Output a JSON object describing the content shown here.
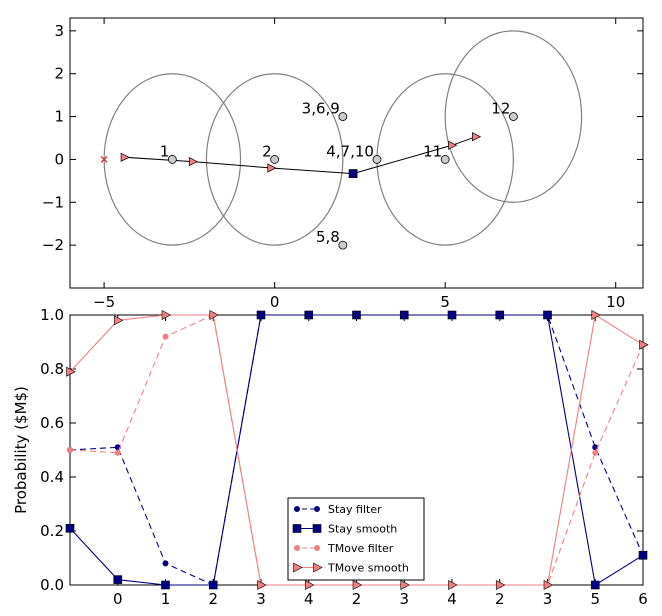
{
  "chart_data": [
    {
      "type": "scatter",
      "xlim": [
        -6,
        10.8
      ],
      "ylim": [
        -3,
        3.3
      ],
      "x_ticks": [
        -5,
        0,
        5,
        10
      ],
      "y_ticks": [
        3,
        2,
        1,
        0,
        -1,
        -2
      ],
      "x_tick_labels": [
        "−5",
        "0",
        "5",
        "10"
      ],
      "y_tick_labels": [
        "3",
        "2",
        "1",
        "0",
        "−1",
        "−2"
      ],
      "observations": [
        {
          "x": -3,
          "y": 0
        },
        {
          "x": 0,
          "y": 0
        },
        {
          "x": 2,
          "y": 1
        },
        {
          "x": 2,
          "y": -2
        },
        {
          "x": 3,
          "y": 0
        },
        {
          "x": 5,
          "y": 0
        },
        {
          "x": 7,
          "y": 1
        }
      ],
      "annotations": [
        {
          "text": "1",
          "x": -3,
          "y": 0
        },
        {
          "text": "2",
          "x": 0,
          "y": 0
        },
        {
          "text": "3,6,9",
          "x": 2,
          "y": 1
        },
        {
          "text": "4,7,10",
          "x": 3,
          "y": 0
        },
        {
          "text": "5,8",
          "x": 2,
          "y": -2
        },
        {
          "text": "11",
          "x": 5,
          "y": 0
        },
        {
          "text": "12",
          "x": 7,
          "y": 1
        }
      ],
      "ellipses": [
        {
          "cx": -3,
          "cy": 0,
          "rx": 2,
          "ry": 2
        },
        {
          "cx": 0,
          "cy": 0,
          "rx": 2,
          "ry": 2
        },
        {
          "cx": 5,
          "cy": 0,
          "rx": 2,
          "ry": 2
        },
        {
          "cx": 7,
          "cy": 1,
          "rx": 2,
          "ry": 2
        }
      ],
      "start_marker": {
        "x": -5,
        "y": 0
      },
      "trajectory": [
        {
          "x": -4.4,
          "y": 0.05
        },
        {
          "x": -2.4,
          "y": -0.05
        },
        {
          "x": -0.1,
          "y": -0.2
        },
        {
          "x": 2.3,
          "y": -0.33
        },
        {
          "x": 5.2,
          "y": 0.33
        },
        {
          "x": 5.9,
          "y": 0.53
        }
      ],
      "stay_marker": {
        "x": 2.3,
        "y": -0.33
      },
      "colors": {
        "observation": "#cccccc",
        "trajectory": "#f08080",
        "ellipse": "#808080",
        "stay": "#000080",
        "start": "#cc3333"
      }
    },
    {
      "type": "line",
      "ylabel": "Probability ($M$)",
      "ylim": [
        0,
        1
      ],
      "y_ticks": [
        0.0,
        0.2,
        0.4,
        0.6,
        0.8,
        1.0
      ],
      "y_tick_labels": [
        "0.0",
        "0.2",
        "0.4",
        "0.6",
        "0.8",
        "1.0"
      ],
      "categories": [
        "",
        "0",
        "1",
        "2",
        "3",
        "4",
        "2",
        "3",
        "4",
        "2",
        "3",
        "5",
        "6"
      ],
      "series": [
        {
          "name": "Stay filter",
          "style": "dashed-dot",
          "color": "#000080",
          "values": [
            0.5,
            0.51,
            0.08,
            0.0,
            1.0,
            1.0,
            1.0,
            1.0,
            1.0,
            1.0,
            1.0,
            0.51,
            0.11
          ]
        },
        {
          "name": "Stay smooth",
          "style": "solid-square",
          "color": "#000080",
          "values": [
            0.21,
            0.02,
            0.0,
            0.0,
            1.0,
            1.0,
            1.0,
            1.0,
            1.0,
            1.0,
            1.0,
            0.0,
            0.11
          ]
        },
        {
          "name": "TMove filter",
          "style": "dashed-dot",
          "color": "#f08080",
          "values": [
            0.5,
            0.49,
            0.92,
            1.0,
            0.0,
            0.0,
            0.0,
            0.0,
            0.0,
            0.0,
            0.0,
            0.49,
            0.89
          ]
        },
        {
          "name": "TMove smooth",
          "style": "solid-triangle",
          "color": "#f08080",
          "values": [
            0.79,
            0.98,
            1.0,
            1.0,
            0.0,
            0.0,
            0.0,
            0.0,
            0.0,
            0.0,
            0.0,
            1.0,
            0.89
          ]
        }
      ],
      "legend": {
        "placement": "bottom-center",
        "labels": [
          "Stay filter",
          "Stay smooth",
          "TMove filter",
          "TMove smooth"
        ]
      }
    }
  ]
}
